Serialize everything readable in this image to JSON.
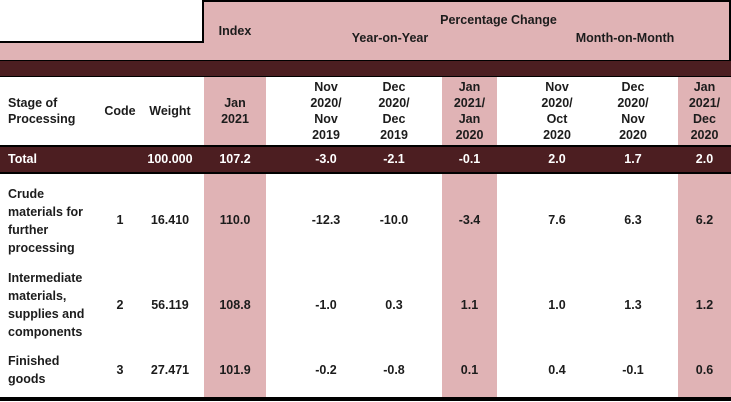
{
  "chart_data": {
    "type": "table",
    "column_groups": {
      "index": "Index",
      "percentage_change": "Percentage Change",
      "year_on_year": "Year-on-Year",
      "month_on_month": "Month-on-Month"
    },
    "columns": [
      "Stage of Processing",
      "Code",
      "Weight",
      "Jan\n2021",
      "Nov\n2020/\nNov\n2019",
      "Dec\n2020/\nDec\n2019",
      "Jan\n2021/\nJan\n2020",
      "Nov\n2020/\nOct\n2020",
      "Dec\n2020/\nNov\n2020",
      "Jan\n2021/\nDec\n2020"
    ],
    "rows": [
      {
        "stage": "Total",
        "code": "",
        "weight": "100.000",
        "values": [
          "107.2",
          "-3.0",
          "-2.1",
          "-0.1",
          "2.0",
          "1.7",
          "2.0"
        ],
        "emphasis": true
      },
      {
        "stage": "Crude materials for further processing",
        "code": "1",
        "weight": "16.410",
        "values": [
          "110.0",
          "-12.3",
          "-10.0",
          "-3.4",
          "7.6",
          "6.3",
          "6.2"
        ]
      },
      {
        "stage": "Intermediate materials, supplies and components",
        "code": "2",
        "weight": "56.119",
        "values": [
          "108.8",
          "-1.0",
          "0.3",
          "1.1",
          "1.0",
          "1.3",
          "1.2"
        ]
      },
      {
        "stage": "Finished goods",
        "code": "3",
        "weight": "27.471",
        "values": [
          "101.9",
          "-0.2",
          "-0.8",
          "0.1",
          "0.4",
          "-0.1",
          "0.6"
        ]
      }
    ],
    "layout": {
      "highlighted_columns": [
        "Jan 2021",
        "Jan 2021/Jan 2020",
        "Jan 2021/Dec 2020"
      ],
      "grid": "horizontal rules only"
    },
    "colors": {
      "highlight_pink": "#e0b3b5",
      "band_maroon": "#4c1e21",
      "rule_black": "#000000",
      "text_dark": "#1c1c1c",
      "text_on_maroon": "#ffffff"
    }
  }
}
